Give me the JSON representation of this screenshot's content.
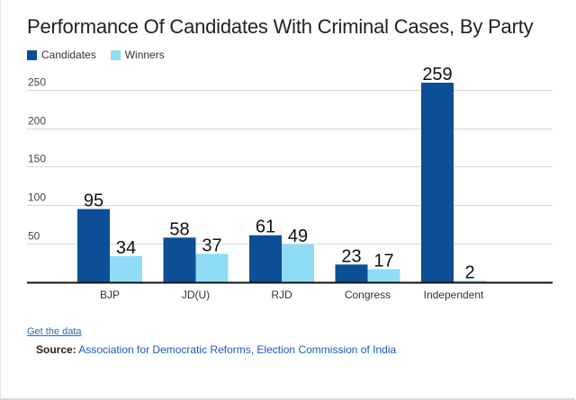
{
  "header": {
    "title": "Performance Of Candidates With Criminal Cases, By Party"
  },
  "colors": {
    "candidates": "#0d4f96",
    "winners": "#8fdcf7",
    "baseline": "#111111",
    "grid": "#d6d6d6"
  },
  "footer": {
    "get_data_link": "Get the data",
    "source_label": "Source:",
    "source_text": "Association for Democratic Reforms, Election Commission of India"
  },
  "chart_data": {
    "type": "bar",
    "title": "Performance Of Candidates With Criminal Cases, By Party",
    "xlabel": "",
    "ylabel": "",
    "categories": [
      "BJP",
      "JD(U)",
      "RJD",
      "Congress",
      "Independent"
    ],
    "series": [
      {
        "name": "Candidates",
        "values": [
          95,
          58,
          61,
          23,
          259
        ]
      },
      {
        "name": "Winners",
        "values": [
          34,
          37,
          49,
          17,
          2
        ]
      }
    ],
    "ylim": [
      0,
      259
    ],
    "yticks": [
      50,
      100,
      150,
      200,
      250
    ],
    "grid": true,
    "legend": "top-left",
    "data_labels": true
  }
}
